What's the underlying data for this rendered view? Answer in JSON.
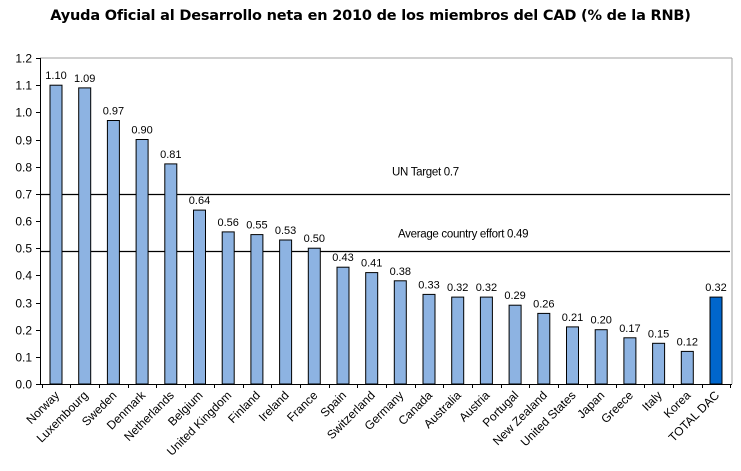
{
  "chart_data": {
    "type": "bar",
    "title": "Ayuda Oficial al Desarrollo neta en 2010 de los miembros del CAD (% de la RNB)",
    "xlabel": "",
    "ylabel": "",
    "ylim": [
      0,
      1.2
    ],
    "yticks": [
      "0.0",
      "0.1",
      "0.2",
      "0.3",
      "0.4",
      "0.5",
      "0.6",
      "0.7",
      "0.8",
      "0.9",
      "1.0",
      "1.1",
      "1.2"
    ],
    "ytick_values": [
      0,
      0.1,
      0.2,
      0.3,
      0.4,
      0.5,
      0.6,
      0.7,
      0.8,
      0.9,
      1.0,
      1.1,
      1.2
    ],
    "grid": false,
    "legend": "none",
    "categories": [
      "Norway",
      "Luxembourg",
      "Sweden",
      "Denmark",
      "Netherlands",
      "Belgium",
      "United Kingdom",
      "Finland",
      "Ireland",
      "France",
      "Spain",
      "Switzerland",
      "Germany",
      "Canada",
      "Australia",
      "Austria",
      "Portugal",
      "New Zealand",
      "United States",
      "Japan",
      "Greece",
      "Italy",
      "Korea",
      "TOTAL DAC"
    ],
    "values": [
      1.1,
      1.09,
      0.97,
      0.9,
      0.81,
      0.64,
      0.56,
      0.55,
      0.53,
      0.5,
      0.43,
      0.41,
      0.38,
      0.33,
      0.32,
      0.32,
      0.29,
      0.26,
      0.21,
      0.2,
      0.17,
      0.15,
      0.12,
      0.32
    ],
    "value_labels": [
      "1.10",
      "1.09",
      "0.97",
      "0.90",
      "0.81",
      "0.64",
      "0.56",
      "0.55",
      "0.53",
      "0.50",
      "0.43",
      "0.41",
      "0.38",
      "0.33",
      "0.32",
      "0.32",
      "0.29",
      "0.26",
      "0.21",
      "0.20",
      "0.17",
      "0.15",
      "0.12",
      "0.32"
    ],
    "highlight_index": 23,
    "reference_lines": [
      {
        "label": "UN Target 0.7",
        "value": 0.7
      },
      {
        "label": "Average country effort 0.49",
        "value": 0.49
      }
    ],
    "colors": {
      "bar": "#8DB3E2",
      "bar_highlight": "#0066CC",
      "bar_outline": "#000000",
      "reference_line": "#000000",
      "frame": "#A0A0A0"
    }
  }
}
